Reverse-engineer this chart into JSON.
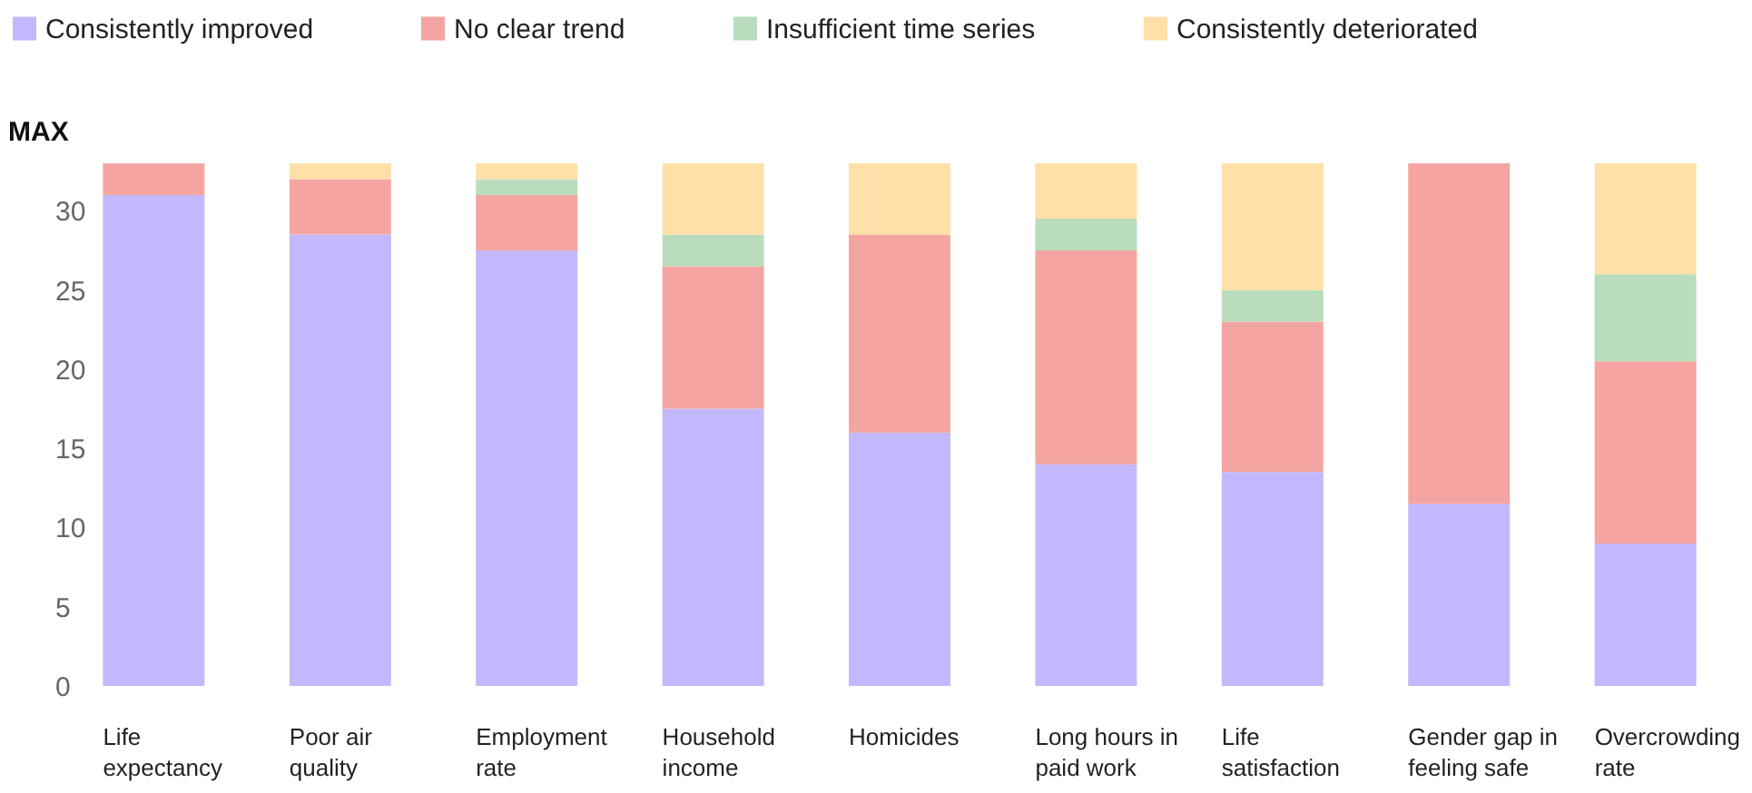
{
  "chart_data": {
    "type": "bar",
    "stacked": true,
    "ylabel": "MAX",
    "categories": [
      "Life expectancy",
      "Poor air quality",
      "Employment rate",
      "Household income",
      "Homicides",
      "Long hours in paid work",
      "Life satisfaction",
      "Gender gap in feeling safe",
      "Overcrowding rate"
    ],
    "series": [
      {
        "name": "Consistently improved",
        "color": "#c3b8fe",
        "values": [
          31,
          28.5,
          27.5,
          17.5,
          16,
          14,
          13.5,
          11.5,
          9
        ]
      },
      {
        "name": "No clear trend",
        "color": "#f5a5a1",
        "values": [
          2,
          3.5,
          3.5,
          9,
          12.5,
          13.5,
          9.5,
          21.5,
          11.5
        ]
      },
      {
        "name": "Insufficient time series",
        "color": "#b9ddbc",
        "values": [
          0,
          0,
          1,
          2,
          0,
          2,
          2,
          0,
          5.5
        ]
      },
      {
        "name": "Consistently deteriorated",
        "color": "#fee0a8",
        "values": [
          0,
          1,
          1,
          4.5,
          4.5,
          3.5,
          8,
          0,
          7
        ]
      }
    ],
    "ylim": [
      0,
      33
    ],
    "yticks": [
      0,
      5,
      10,
      15,
      20,
      25,
      30
    ],
    "grid": false,
    "legend": "top"
  }
}
